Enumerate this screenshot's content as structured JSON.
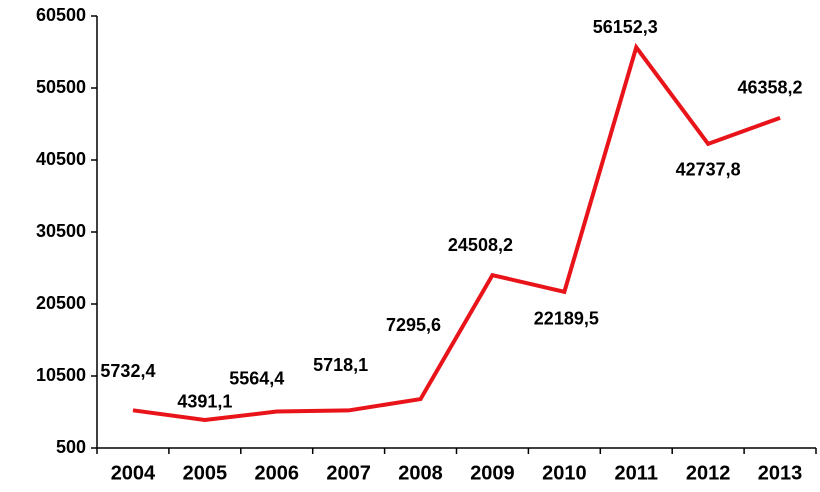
{
  "chart_data": {
    "type": "line",
    "categories": [
      "2004",
      "2005",
      "2006",
      "2007",
      "2008",
      "2009",
      "2010",
      "2011",
      "2012",
      "2013"
    ],
    "values": [
      5732.4,
      4391.1,
      5564.4,
      5718.1,
      7295.6,
      24508.2,
      22189.5,
      56152.3,
      42737.8,
      46358.2
    ],
    "value_labels": [
      "5732,4",
      "4391,1",
      "5564,4",
      "5718,1",
      "7295,6",
      "24508,2",
      "22189,5",
      "56152,3",
      "42737,8",
      "46358,2"
    ],
    "color": "#e8141a",
    "ylim": [
      500,
      60500
    ],
    "yticks": [
      500,
      10500,
      20500,
      30500,
      40500,
      50500,
      60500
    ],
    "grid": false
  }
}
